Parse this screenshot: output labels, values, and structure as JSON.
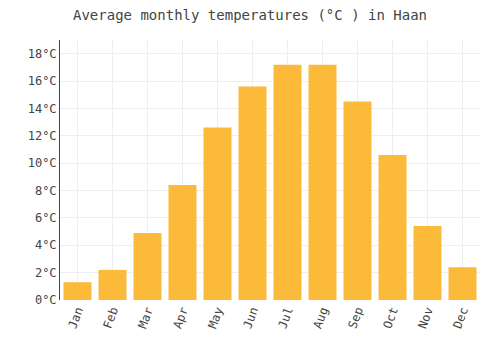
{
  "chart_data": {
    "type": "bar",
    "title": "Average monthly temperatures (°C ) in Haan",
    "categories": [
      "Jan",
      "Feb",
      "Mar",
      "Apr",
      "May",
      "Jun",
      "Jul",
      "Aug",
      "Sep",
      "Oct",
      "Nov",
      "Dec"
    ],
    "values": [
      1.3,
      2.2,
      4.9,
      8.4,
      12.6,
      15.6,
      17.2,
      17.2,
      14.5,
      10.6,
      5.4,
      2.4
    ],
    "color": "#FBBA3A",
    "ylim": [
      0,
      19
    ],
    "yticks": [
      {
        "value": 0,
        "label": "0°C"
      },
      {
        "value": 2,
        "label": "2°C"
      },
      {
        "value": 4,
        "label": "4°C"
      },
      {
        "value": 6,
        "label": "6°C"
      },
      {
        "value": 8,
        "label": "8°C"
      },
      {
        "value": 10,
        "label": "10°C"
      },
      {
        "value": 12,
        "label": "12°C"
      },
      {
        "value": 14,
        "label": "14°C"
      },
      {
        "value": 16,
        "label": "16°C"
      },
      {
        "value": 18,
        "label": "18°C"
      }
    ],
    "grid": true
  }
}
